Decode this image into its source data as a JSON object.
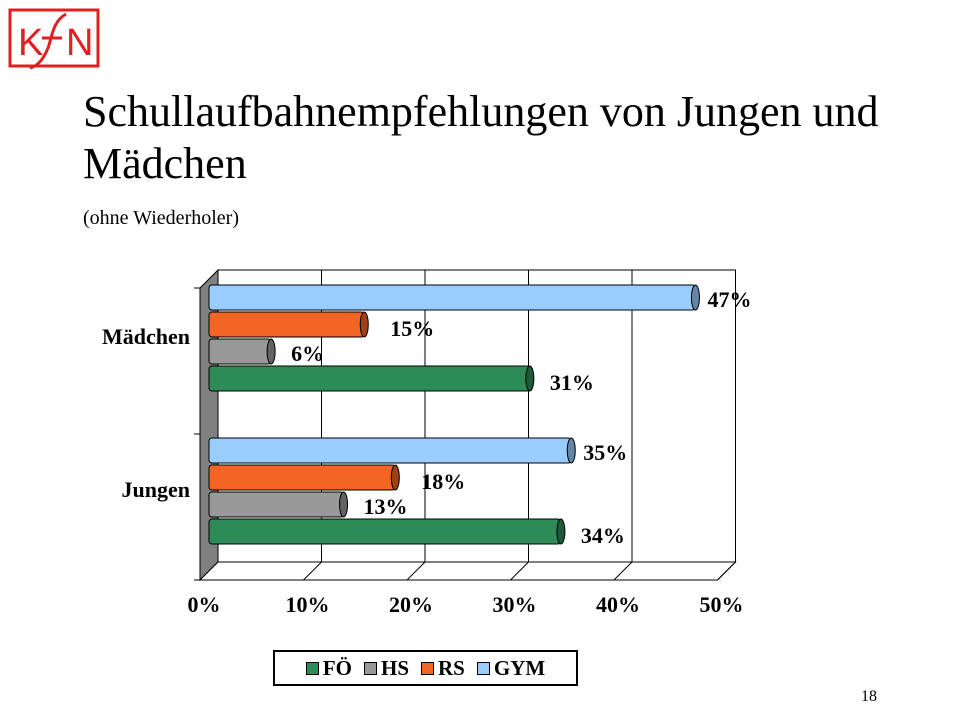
{
  "logo": {
    "text": "KfN",
    "color": "#e02020"
  },
  "title": "Schullaufbahnempfehlungen von Jungen und Mädchen",
  "subtitle": "(ohne Wiederholer)",
  "page_number": "18",
  "chart_data": {
    "type": "bar",
    "orientation": "horizontal",
    "categories": [
      "Mädchen",
      "Jungen"
    ],
    "series": [
      {
        "name": "FÖ",
        "values": [
          31,
          34
        ],
        "labels": [
          "31%",
          "34%"
        ],
        "color": "#2e8b57"
      },
      {
        "name": "HS",
        "values": [
          6,
          13
        ],
        "labels": [
          "6%",
          "13%"
        ],
        "color": "#999999"
      },
      {
        "name": "RS",
        "values": [
          15,
          18
        ],
        "labels": [
          "15%",
          "18%"
        ],
        "color": "#f26522"
      },
      {
        "name": "GYM",
        "values": [
          47,
          35
        ],
        "labels": [
          "47%",
          "35%"
        ],
        "color": "#99ccff"
      }
    ],
    "xlim": [
      0,
      50
    ],
    "x_ticks": [
      "0%",
      "10%",
      "20%",
      "30%",
      "40%",
      "50%"
    ],
    "grid": true,
    "legend_position": "bottom"
  }
}
